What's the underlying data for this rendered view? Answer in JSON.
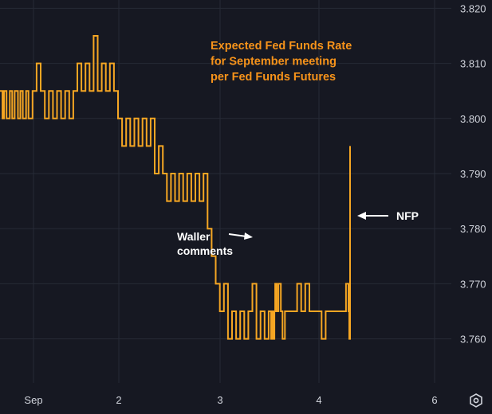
{
  "chart_data": {
    "type": "line",
    "title_lines": [
      "Expected Fed Funds Rate",
      "for September meeting",
      "per Fed Funds Futures"
    ],
    "title_color": "#f7931a",
    "line_color": "#f5a623",
    "background_color": "#161822",
    "grid": true,
    "xlabel": "",
    "ylabel": "",
    "x_ticks": [
      "Sep",
      "2",
      "3",
      "4",
      "6"
    ],
    "y_ticks": [
      "3.820",
      "3.810",
      "3.800",
      "3.790",
      "3.780",
      "3.770",
      "3.760"
    ],
    "ylim": [
      3.752,
      3.8215
    ],
    "series": [
      {
        "x": [
          0.0,
          0.03,
          0.05,
          0.08,
          0.12,
          0.15,
          0.18,
          0.22,
          0.25,
          0.28,
          0.32,
          0.35,
          0.4,
          0.45,
          0.5,
          0.55,
          0.6,
          0.65,
          0.7,
          0.75,
          0.8,
          0.85,
          0.9,
          0.95,
          1.0,
          1.05,
          1.1,
          1.15,
          1.2,
          1.25,
          1.3,
          1.35,
          1.4,
          1.45,
          1.5,
          1.55,
          1.6,
          1.65,
          1.7,
          1.75,
          1.8,
          1.85,
          1.9,
          1.95,
          2.0,
          2.05,
          2.1,
          2.15,
          2.2,
          2.25,
          2.3,
          2.35,
          2.4,
          2.45,
          2.5,
          2.55,
          2.6,
          2.65,
          2.7,
          2.75,
          2.8,
          2.85,
          2.9,
          2.95,
          3.0,
          3.05,
          3.1,
          3.15,
          3.2,
          3.25,
          3.3,
          3.33,
          3.35,
          3.36,
          3.37,
          3.38,
          3.4,
          3.42,
          3.45,
          3.47,
          3.5,
          3.55,
          3.6,
          3.65,
          3.7,
          3.75,
          3.8,
          3.85,
          3.9,
          3.95,
          4.0,
          4.05,
          4.1,
          4.15,
          4.2,
          4.25,
          4.28,
          4.29,
          4.3
        ],
        "y": [
          3.805,
          3.8,
          3.805,
          3.8,
          3.805,
          3.8,
          3.805,
          3.8,
          3.805,
          3.8,
          3.805,
          3.8,
          3.805,
          3.81,
          3.805,
          3.8,
          3.805,
          3.8,
          3.805,
          3.8,
          3.805,
          3.8,
          3.805,
          3.81,
          3.805,
          3.81,
          3.805,
          3.815,
          3.805,
          3.81,
          3.805,
          3.81,
          3.805,
          3.8,
          3.795,
          3.8,
          3.795,
          3.8,
          3.795,
          3.8,
          3.795,
          3.8,
          3.79,
          3.795,
          3.79,
          3.785,
          3.79,
          3.785,
          3.79,
          3.785,
          3.79,
          3.785,
          3.79,
          3.785,
          3.79,
          3.78,
          3.775,
          3.77,
          3.765,
          3.77,
          3.76,
          3.765,
          3.76,
          3.765,
          3.76,
          3.765,
          3.77,
          3.76,
          3.765,
          3.76,
          3.765,
          3.76,
          3.765,
          3.76,
          3.765,
          3.77,
          3.765,
          3.77,
          3.765,
          3.76,
          3.765,
          3.765,
          3.765,
          3.77,
          3.765,
          3.77,
          3.765,
          3.765,
          3.765,
          3.76,
          3.765,
          3.765,
          3.765,
          3.765,
          3.765,
          3.77,
          3.765,
          3.76,
          3.795
        ]
      }
    ],
    "annotations": [
      {
        "lines": [
          "Waller",
          "comments"
        ],
        "arrow": "right"
      },
      {
        "lines": [
          "NFP"
        ],
        "arrow": "left"
      }
    ]
  },
  "toolbar": {
    "settings_icon": "gear-icon"
  }
}
